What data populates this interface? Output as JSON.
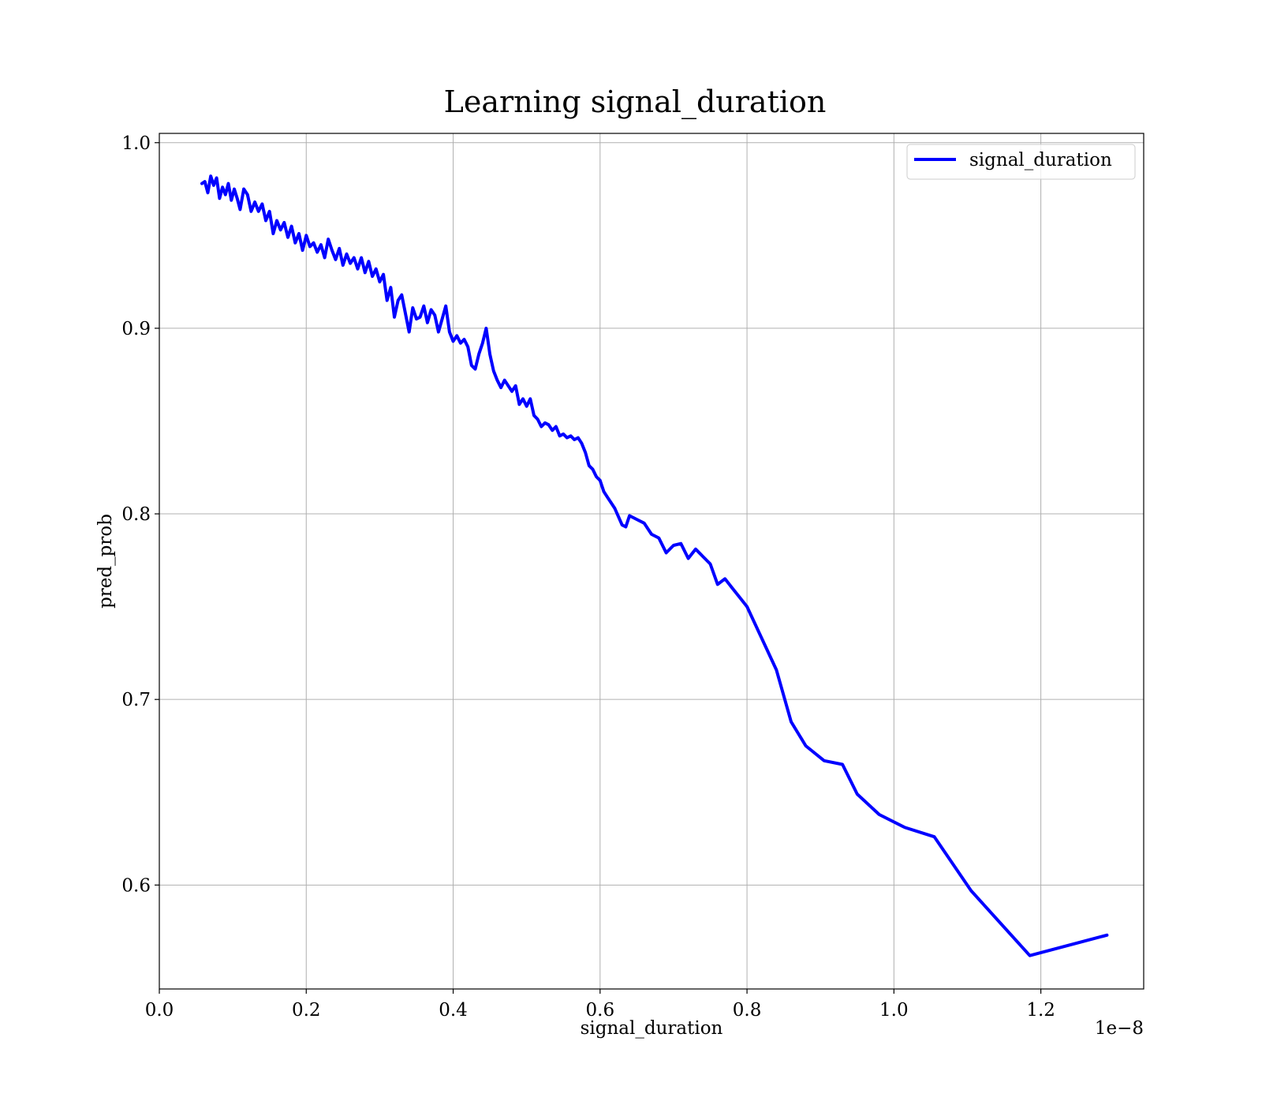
{
  "chart_data": {
    "type": "line",
    "title": "Learning signal_duration",
    "xlabel": "signal_duration",
    "ylabel": "pred_prob",
    "x_offset_text": "1e−8",
    "xlim": [
      0.0,
      1.34
    ],
    "ylim": [
      0.544,
      1.005
    ],
    "x_ticks": [
      0.0,
      0.2,
      0.4,
      0.6,
      0.8,
      1.0,
      1.2
    ],
    "x_tick_labels": [
      "0.0",
      "0.2",
      "0.4",
      "0.6",
      "0.8",
      "1.0",
      "1.2"
    ],
    "y_ticks": [
      0.6,
      0.7,
      0.8,
      0.9,
      1.0
    ],
    "y_tick_labels": [
      "0.6",
      "0.7",
      "0.8",
      "0.9",
      "1.0"
    ],
    "grid": true,
    "legend_position": "top-right",
    "series": [
      {
        "name": "signal_duration",
        "color": "#0000ff",
        "x": [
          0.058,
          0.062,
          0.066,
          0.07,
          0.074,
          0.078,
          0.082,
          0.086,
          0.09,
          0.094,
          0.098,
          0.102,
          0.106,
          0.11,
          0.115,
          0.12,
          0.125,
          0.13,
          0.135,
          0.14,
          0.145,
          0.15,
          0.155,
          0.16,
          0.165,
          0.17,
          0.175,
          0.18,
          0.185,
          0.19,
          0.195,
          0.2,
          0.205,
          0.21,
          0.215,
          0.22,
          0.225,
          0.23,
          0.235,
          0.24,
          0.245,
          0.25,
          0.255,
          0.26,
          0.265,
          0.27,
          0.275,
          0.28,
          0.285,
          0.29,
          0.295,
          0.3,
          0.305,
          0.31,
          0.315,
          0.32,
          0.325,
          0.33,
          0.335,
          0.34,
          0.345,
          0.35,
          0.355,
          0.36,
          0.365,
          0.37,
          0.375,
          0.38,
          0.385,
          0.39,
          0.395,
          0.4,
          0.405,
          0.41,
          0.415,
          0.42,
          0.425,
          0.43,
          0.435,
          0.44,
          0.445,
          0.45,
          0.455,
          0.46,
          0.465,
          0.47,
          0.475,
          0.48,
          0.485,
          0.49,
          0.495,
          0.5,
          0.505,
          0.51,
          0.515,
          0.52,
          0.525,
          0.53,
          0.535,
          0.54,
          0.545,
          0.55,
          0.555,
          0.56,
          0.565,
          0.57,
          0.575,
          0.58,
          0.585,
          0.59,
          0.595,
          0.6,
          0.605,
          0.61,
          0.62,
          0.63,
          0.635,
          0.64,
          0.65,
          0.66,
          0.67,
          0.68,
          0.69,
          0.7,
          0.71,
          0.72,
          0.73,
          0.74,
          0.75,
          0.76,
          0.77,
          0.78,
          0.79,
          0.8,
          0.84,
          0.86,
          0.88,
          0.905,
          0.93,
          0.95,
          0.98,
          1.015,
          1.055,
          1.105,
          1.185,
          1.29
        ],
        "values": [
          0.978,
          0.979,
          0.973,
          0.982,
          0.977,
          0.981,
          0.97,
          0.976,
          0.972,
          0.978,
          0.969,
          0.975,
          0.97,
          0.964,
          0.975,
          0.972,
          0.963,
          0.968,
          0.963,
          0.967,
          0.958,
          0.963,
          0.951,
          0.958,
          0.953,
          0.957,
          0.949,
          0.955,
          0.946,
          0.951,
          0.942,
          0.95,
          0.944,
          0.946,
          0.941,
          0.945,
          0.938,
          0.948,
          0.942,
          0.937,
          0.943,
          0.934,
          0.94,
          0.935,
          0.938,
          0.932,
          0.938,
          0.93,
          0.936,
          0.928,
          0.932,
          0.925,
          0.929,
          0.915,
          0.922,
          0.906,
          0.915,
          0.918,
          0.908,
          0.898,
          0.911,
          0.905,
          0.906,
          0.912,
          0.903,
          0.91,
          0.907,
          0.898,
          0.905,
          0.912,
          0.898,
          0.893,
          0.896,
          0.892,
          0.894,
          0.89,
          0.88,
          0.878,
          0.886,
          0.892,
          0.9,
          0.886,
          0.877,
          0.872,
          0.868,
          0.872,
          0.869,
          0.866,
          0.869,
          0.859,
          0.862,
          0.858,
          0.862,
          0.853,
          0.851,
          0.847,
          0.849,
          0.848,
          0.845,
          0.847,
          0.842,
          0.843,
          0.841,
          0.842,
          0.84,
          0.841,
          0.838,
          0.833,
          0.826,
          0.824,
          0.82,
          0.818,
          0.812,
          0.809,
          0.803,
          0.794,
          0.793,
          0.799,
          0.797,
          0.795,
          0.789,
          0.787,
          0.779,
          0.783,
          0.784,
          0.776,
          0.781,
          0.777,
          0.773,
          0.762,
          0.765,
          0.76,
          0.755,
          0.75,
          0.716,
          0.688,
          0.675,
          0.667,
          0.665,
          0.649,
          0.638,
          0.631,
          0.626,
          0.597,
          0.562,
          0.573
        ]
      }
    ]
  }
}
